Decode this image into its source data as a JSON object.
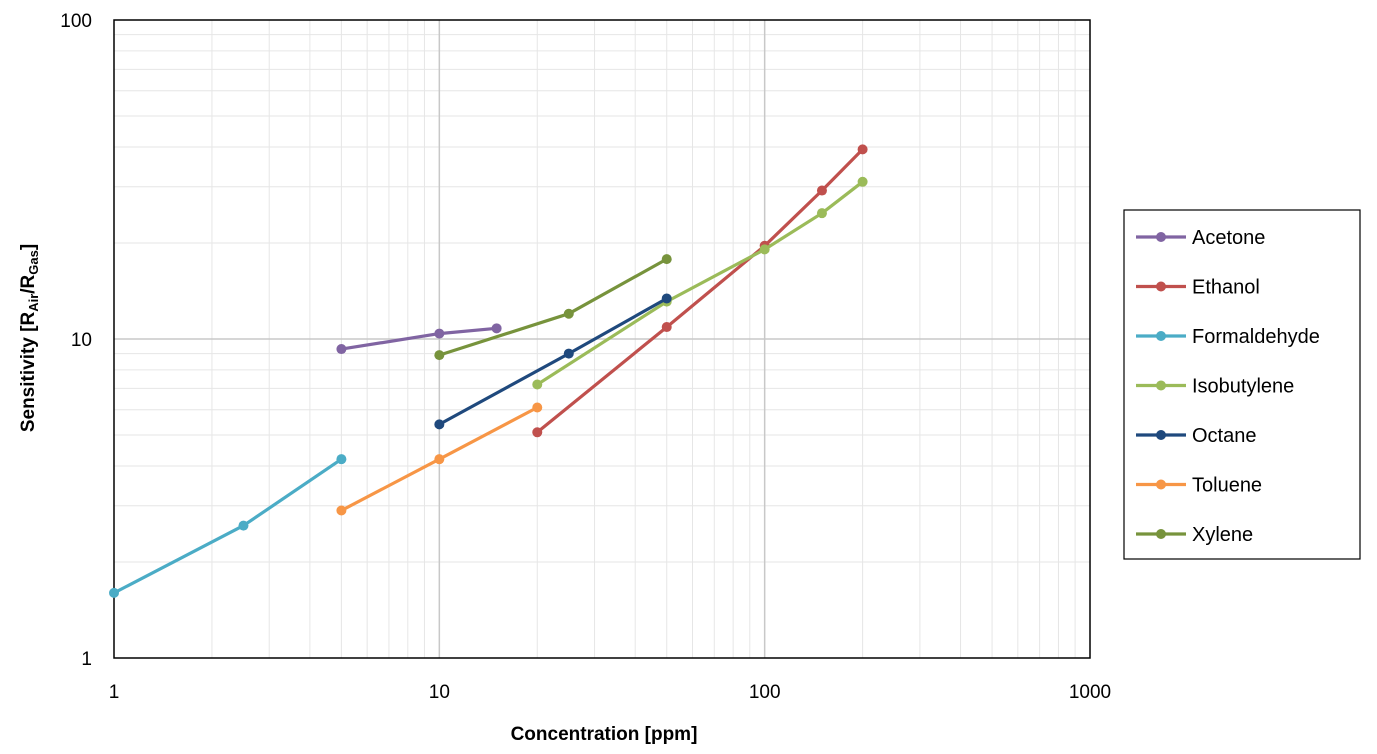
{
  "chart_data": {
    "type": "line",
    "xlabel": "Concentration [ppm]",
    "ylabel": {
      "base": "Sensitivity [R",
      "sub1": "Air",
      "mid": "/R",
      "sub2": "Gas",
      "end": "]"
    },
    "x_scale": "log",
    "y_scale": "log",
    "xlim": [
      1,
      1000
    ],
    "ylim": [
      1,
      100
    ],
    "x_ticks": [
      "1",
      "10",
      "100",
      "1000"
    ],
    "y_ticks": [
      "1",
      "10",
      "100"
    ],
    "grid": true,
    "legend_position": "right",
    "series": [
      {
        "name": "Acetone",
        "color": "#8064a2",
        "x": [
          5,
          10,
          15
        ],
        "y": [
          9.3,
          10.4,
          10.8
        ]
      },
      {
        "name": "Ethanol",
        "color": "#c0504d",
        "x": [
          20,
          50,
          100,
          150,
          200
        ],
        "y": [
          5.1,
          10.9,
          19.6,
          29.2,
          39.3
        ]
      },
      {
        "name": "Formaldehyde",
        "color": "#4bacc6",
        "x": [
          1,
          2.5,
          5
        ],
        "y": [
          1.6,
          2.6,
          4.2
        ]
      },
      {
        "name": "Isobutylene",
        "color": "#9bbb59",
        "x": [
          20,
          50,
          100,
          150,
          200
        ],
        "y": [
          7.2,
          13.1,
          19.1,
          24.8,
          31.1
        ]
      },
      {
        "name": "Octane",
        "color": "#1f497d",
        "x": [
          10,
          25,
          50
        ],
        "y": [
          5.4,
          9.0,
          13.4
        ]
      },
      {
        "name": "Toluene",
        "color": "#f79646",
        "x": [
          5,
          10,
          20
        ],
        "y": [
          2.9,
          4.2,
          6.1
        ]
      },
      {
        "name": "Xylene",
        "color": "#77933c",
        "x": [
          10,
          25,
          50
        ],
        "y": [
          8.9,
          12.0,
          17.8
        ]
      }
    ]
  }
}
